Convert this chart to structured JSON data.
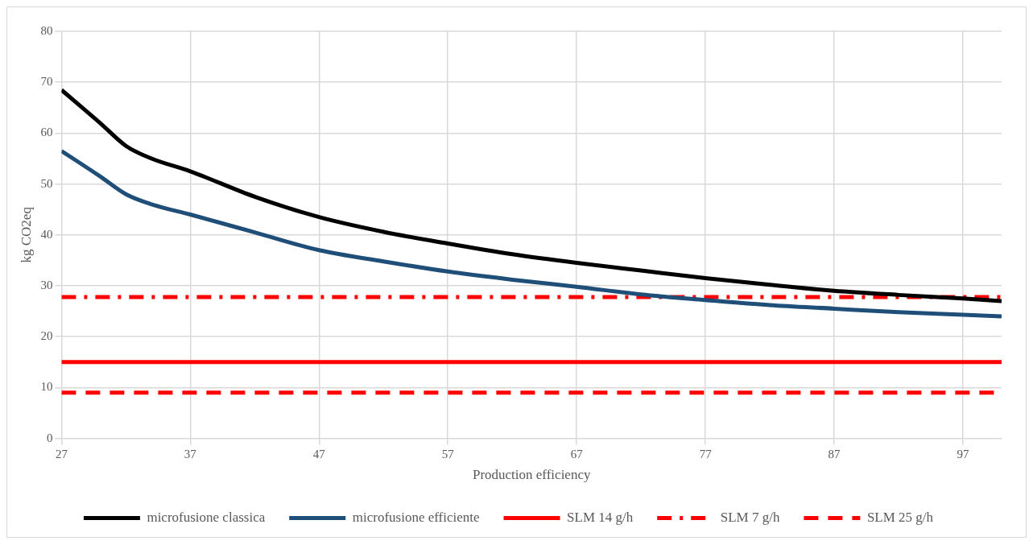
{
  "chart_data": {
    "type": "line",
    "xlabel": "Production efficiency",
    "ylabel": "kg CO2eq",
    "xlim": [
      27,
      100
    ],
    "xticks": [
      27,
      37,
      47,
      57,
      67,
      77,
      87,
      97
    ],
    "ylim": [
      0,
      80
    ],
    "yticks": [
      0,
      10,
      20,
      30,
      40,
      50,
      60,
      70,
      80
    ],
    "grid": true,
    "legend": "bottom",
    "marker": "none",
    "series": [
      {
        "name": "microfusione classica",
        "color": "#000000",
        "line_style": "solid",
        "x": [
          27,
          30,
          32,
          34,
          37,
          42,
          47,
          52,
          57,
          62,
          67,
          72,
          77,
          82,
          87,
          92,
          97,
          100
        ],
        "values": [
          68.5,
          62,
          57.5,
          55,
          52.5,
          47.5,
          43.5,
          40.6,
          38.3,
          36.2,
          34.5,
          33,
          31.5,
          30.2,
          29,
          28.2,
          27.5,
          27
        ]
      },
      {
        "name": "microfusione efficiente",
        "color": "#1f4e79",
        "line_style": "solid",
        "x": [
          27,
          30,
          32,
          34,
          37,
          42,
          47,
          52,
          57,
          62,
          67,
          72,
          77,
          82,
          87,
          92,
          97,
          100
        ],
        "values": [
          56.5,
          51.5,
          48,
          46,
          44,
          40.5,
          37,
          34.8,
          32.8,
          31.2,
          29.8,
          28.3,
          27.2,
          26.2,
          25.5,
          24.8,
          24.3,
          24
        ]
      },
      {
        "name": "SLM 14 g/h",
        "color": "#ff0000",
        "line_style": "solid",
        "x": [
          27,
          100
        ],
        "values": [
          15,
          15
        ]
      },
      {
        "name": "SLM 7 g/h",
        "color": "#ff0000",
        "line_style": "dashdot",
        "x": [
          27,
          100
        ],
        "values": [
          27.8,
          27.8
        ]
      },
      {
        "name": "SLM 25 g/h",
        "color": "#ff0000",
        "line_style": "dashed",
        "x": [
          27,
          100
        ],
        "values": [
          9,
          9
        ]
      }
    ]
  }
}
